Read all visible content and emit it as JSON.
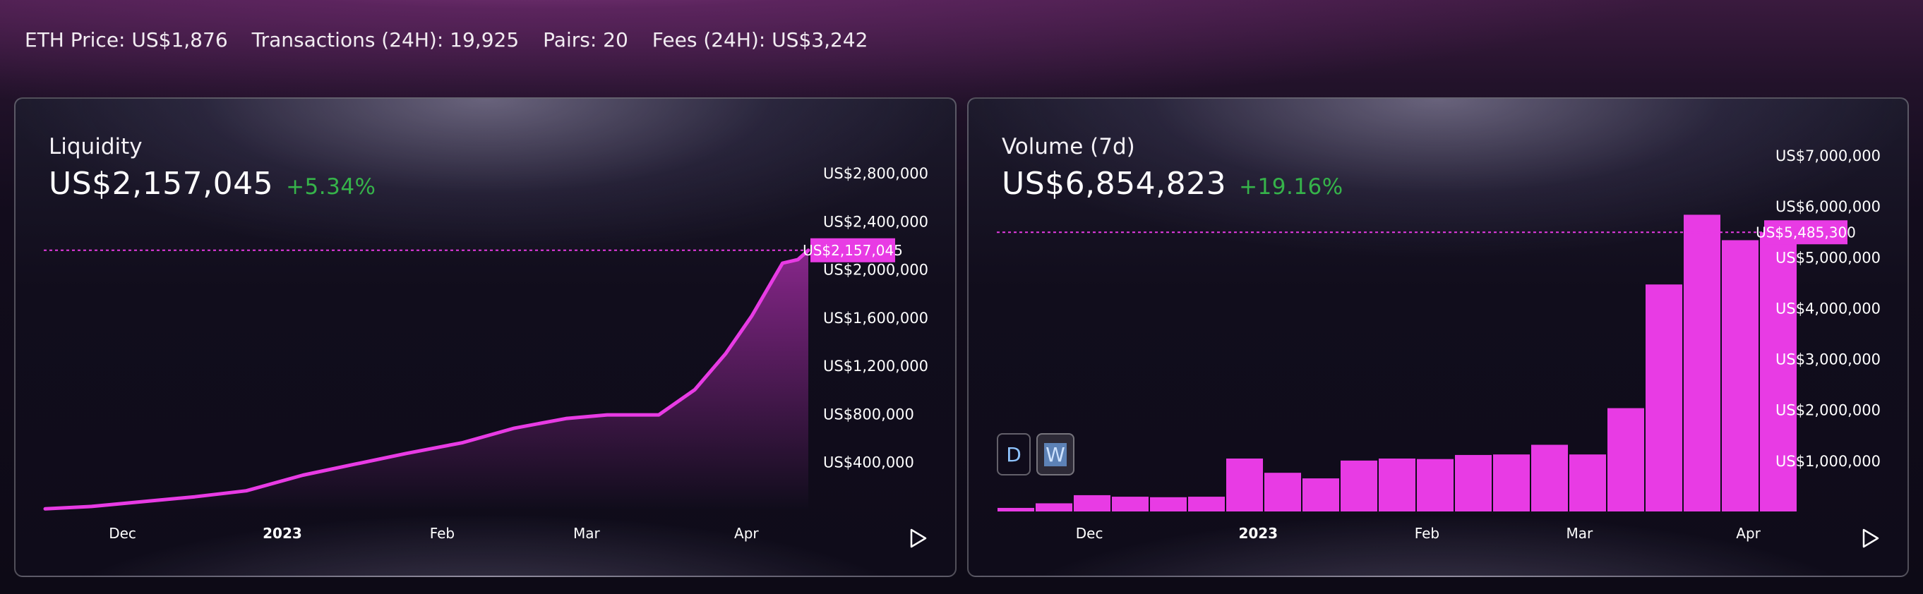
{
  "stats": {
    "eth_price": "ETH Price: US$1,876",
    "transactions": "Transactions (24H): 19,925",
    "pairs": "Pairs: 20",
    "fees": "Fees (24H): US$3,242"
  },
  "liquidity": {
    "title": "Liquidity",
    "value": "US$2,157,045",
    "change": "+5.34%",
    "current_label": "US$2,157,045",
    "play_icon": "play-icon"
  },
  "volume": {
    "title": "Volume (7d)",
    "value": "US$6,854,823",
    "change": "+19.16%",
    "current_label": "US$5,485,300",
    "toggle_d": "D",
    "toggle_w": "W",
    "play_icon": "play-icon"
  },
  "colors": {
    "accent": "#e83be4",
    "positive": "#36b34a",
    "toggle_text": "#8fc4ff"
  },
  "chart_data": [
    {
      "type": "area",
      "series": [
        {
          "x": [
            "2022-11-16",
            "2022-11-25",
            "2022-12-05",
            "2022-12-15",
            "2022-12-25",
            "2023-01-05",
            "2023-01-15",
            "2023-01-25",
            "2023-02-05",
            "2023-02-15",
            "2023-02-25",
            "2023-03-05",
            "2023-03-15",
            "2023-03-22",
            "2023-03-28",
            "2023-04-02",
            "2023-04-08",
            "2023-04-11",
            "2023-04-13"
          ],
          "values": [
            10000,
            30000,
            70000,
            110000,
            160000,
            290000,
            380000,
            470000,
            560000,
            680000,
            760000,
            790000,
            790000,
            1000000,
            1300000,
            1610000,
            2050000,
            2080000,
            2157045
          ]
        }
      ],
      "x_ticks": [
        "Dec",
        "2023",
        "Feb",
        "Mar",
        "Apr"
      ],
      "y_ticks": [
        "US$400,000",
        "US$800,000",
        "US$1,200,000",
        "US$1,600,000",
        "US$2,000,000",
        "US$2,400,000",
        "US$2,800,000"
      ],
      "ylim": [
        0,
        2800000
      ],
      "current_value": 2157045,
      "grid": false
    },
    {
      "type": "bar",
      "categories": [
        "2022-11-14",
        "2022-11-21",
        "2022-11-28",
        "2022-12-05",
        "2022-12-12",
        "2022-12-19",
        "2022-12-26",
        "2023-01-02",
        "2023-01-09",
        "2023-01-16",
        "2023-01-23",
        "2023-01-30",
        "2023-02-06",
        "2023-02-13",
        "2023-02-20",
        "2023-02-27",
        "2023-03-06",
        "2023-03-13",
        "2023-03-20",
        "2023-03-27",
        "2023-04-03"
      ],
      "values": [
        70000,
        160000,
        320000,
        290000,
        280000,
        290000,
        1040000,
        760000,
        650000,
        1000000,
        1040000,
        1030000,
        1110000,
        1120000,
        1310000,
        1120000,
        2030000,
        4460000,
        5830000,
        5330000,
        5485300
      ],
      "x_ticks": [
        "Dec",
        "2023",
        "Feb",
        "Mar",
        "Apr"
      ],
      "y_ticks": [
        "US$1,000,000",
        "US$2,000,000",
        "US$3,000,000",
        "US$4,000,000",
        "US$5,000,000",
        "US$6,000,000",
        "US$7,000,000"
      ],
      "ylim": [
        0,
        7000000
      ],
      "current_value": 5485300,
      "grid": false
    }
  ]
}
